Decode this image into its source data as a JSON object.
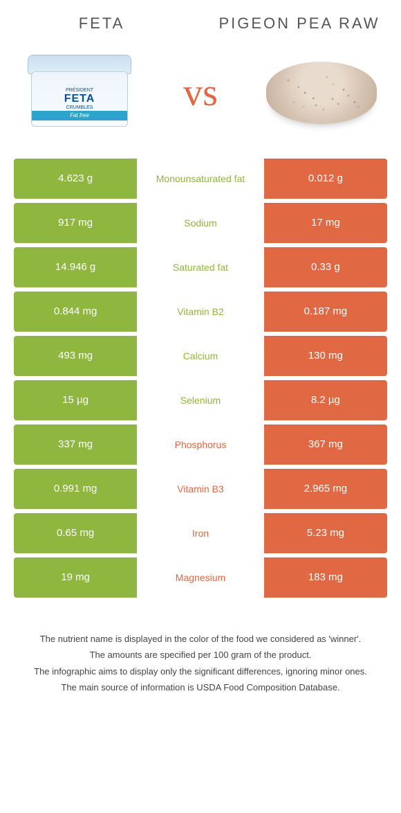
{
  "colors": {
    "left_bg": "#8fb63f",
    "right_bg": "#e06843",
    "vs": "#e06843",
    "nutrient_text_left_winner": "#8fb63f",
    "nutrient_text_right_winner": "#e06843"
  },
  "header": {
    "left_title": "FETA",
    "right_title": "PIGEON PEA RAW",
    "vs": "vs"
  },
  "rows": [
    {
      "nutrient": "Monounsaturated fat",
      "left": "4.623 g",
      "right": "0.012 g",
      "winner": "left"
    },
    {
      "nutrient": "Sodium",
      "left": "917 mg",
      "right": "17 mg",
      "winner": "left"
    },
    {
      "nutrient": "Saturated fat",
      "left": "14.946 g",
      "right": "0.33 g",
      "winner": "left"
    },
    {
      "nutrient": "Vitamin B2",
      "left": "0.844 mg",
      "right": "0.187 mg",
      "winner": "left"
    },
    {
      "nutrient": "Calcium",
      "left": "493 mg",
      "right": "130 mg",
      "winner": "left"
    },
    {
      "nutrient": "Selenium",
      "left": "15 µg",
      "right": "8.2 µg",
      "winner": "left"
    },
    {
      "nutrient": "Phosphorus",
      "left": "337 mg",
      "right": "367 mg",
      "winner": "right"
    },
    {
      "nutrient": "Vitamin B3",
      "left": "0.991 mg",
      "right": "2.965 mg",
      "winner": "right"
    },
    {
      "nutrient": "Iron",
      "left": "0.65 mg",
      "right": "5.23 mg",
      "winner": "right"
    },
    {
      "nutrient": "Magnesium",
      "left": "19 mg",
      "right": "183 mg",
      "winner": "right"
    }
  ],
  "footer": {
    "line1": "The nutrient name is displayed in the color of the food we considered as 'winner'.",
    "line2": "The amounts are specified per 100 gram of the product.",
    "line3": "The infographic aims to display only the significant differences, ignoring minor ones.",
    "line4": "The main source of information is USDA Food Composition Database."
  }
}
